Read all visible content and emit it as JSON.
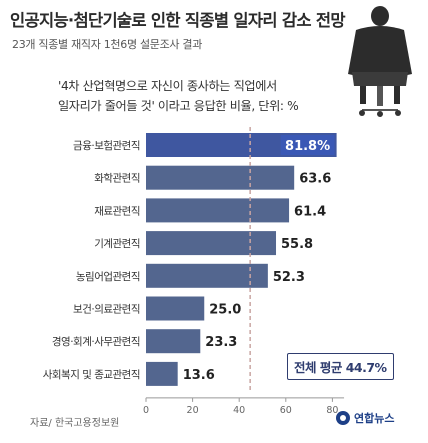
{
  "title": "인공지능·첨단기술로 인한 직종별 일자리 감소 전망",
  "subtitle": "23개 직종별 재직자 1천6명 설문조사 결과",
  "note_line1": "'4차 산업혁명으로 자신이 종사하는 직업에서",
  "note_line2": "일자리가 줄어들 것' 이라고 응답한 비율, 단위: %",
  "source": "자료/ 한국고용정보원",
  "logo_text": "연합뉴스",
  "average_label": "전체 평균 44.7%",
  "colors": {
    "bar": "#53668f",
    "bar_highlight": "#3f57a0",
    "highlight_label_bg": "#3a58b5",
    "average_line": "#c9a5a2",
    "axis": "#999999",
    "text": "#333333"
  },
  "chart_data": {
    "type": "bar",
    "orientation": "horizontal",
    "categories": [
      "금융·보험관련직",
      "화학관련직",
      "재료관련직",
      "기계관련직",
      "농림어업관련직",
      "보건·의료관련직",
      "경영·회계·사무관련직",
      "사회복지 및 종교관련직"
    ],
    "values": [
      81.8,
      63.6,
      61.4,
      55.8,
      52.3,
      25.0,
      23.3,
      13.6
    ],
    "value_labels": [
      "81.8%",
      "63.6",
      "61.4",
      "55.8",
      "52.3",
      "25.0",
      "23.3",
      "13.6"
    ],
    "average": 44.7,
    "xlim": [
      0,
      85
    ],
    "xticks": [
      "0",
      "20",
      "40",
      "60",
      "80"
    ],
    "xtick_values": [
      0,
      20,
      40,
      60,
      80
    ],
    "grid": false
  }
}
